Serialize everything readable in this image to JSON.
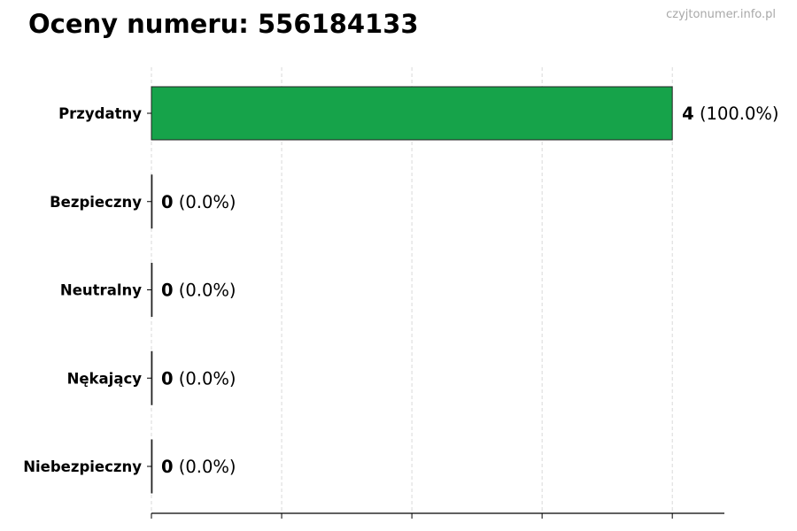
{
  "chart_data": {
    "type": "bar",
    "orientation": "horizontal",
    "title": "Oceny numeru: 556184133",
    "watermark": "czyjtonumer.info.pl",
    "categories": [
      "Przydatny",
      "Bezpieczny",
      "Neutralny",
      "Nękający",
      "Niebezpieczny"
    ],
    "values": [
      4,
      0,
      0,
      0,
      0
    ],
    "value_labels": [
      "(100.0%)",
      "(0.0%)",
      "(0.0%)",
      "(0.0%)",
      "(0.0%)"
    ],
    "colors": [
      "#16a34a",
      "#16a34a",
      "#16a34a",
      "#16a34a",
      "#16a34a"
    ],
    "xlim": [
      0,
      4.4
    ],
    "xticks": [
      0,
      1,
      2,
      3,
      4
    ],
    "xtick_labels_shown": false,
    "grid": "x-dashed",
    "xlabel": "",
    "ylabel": ""
  }
}
